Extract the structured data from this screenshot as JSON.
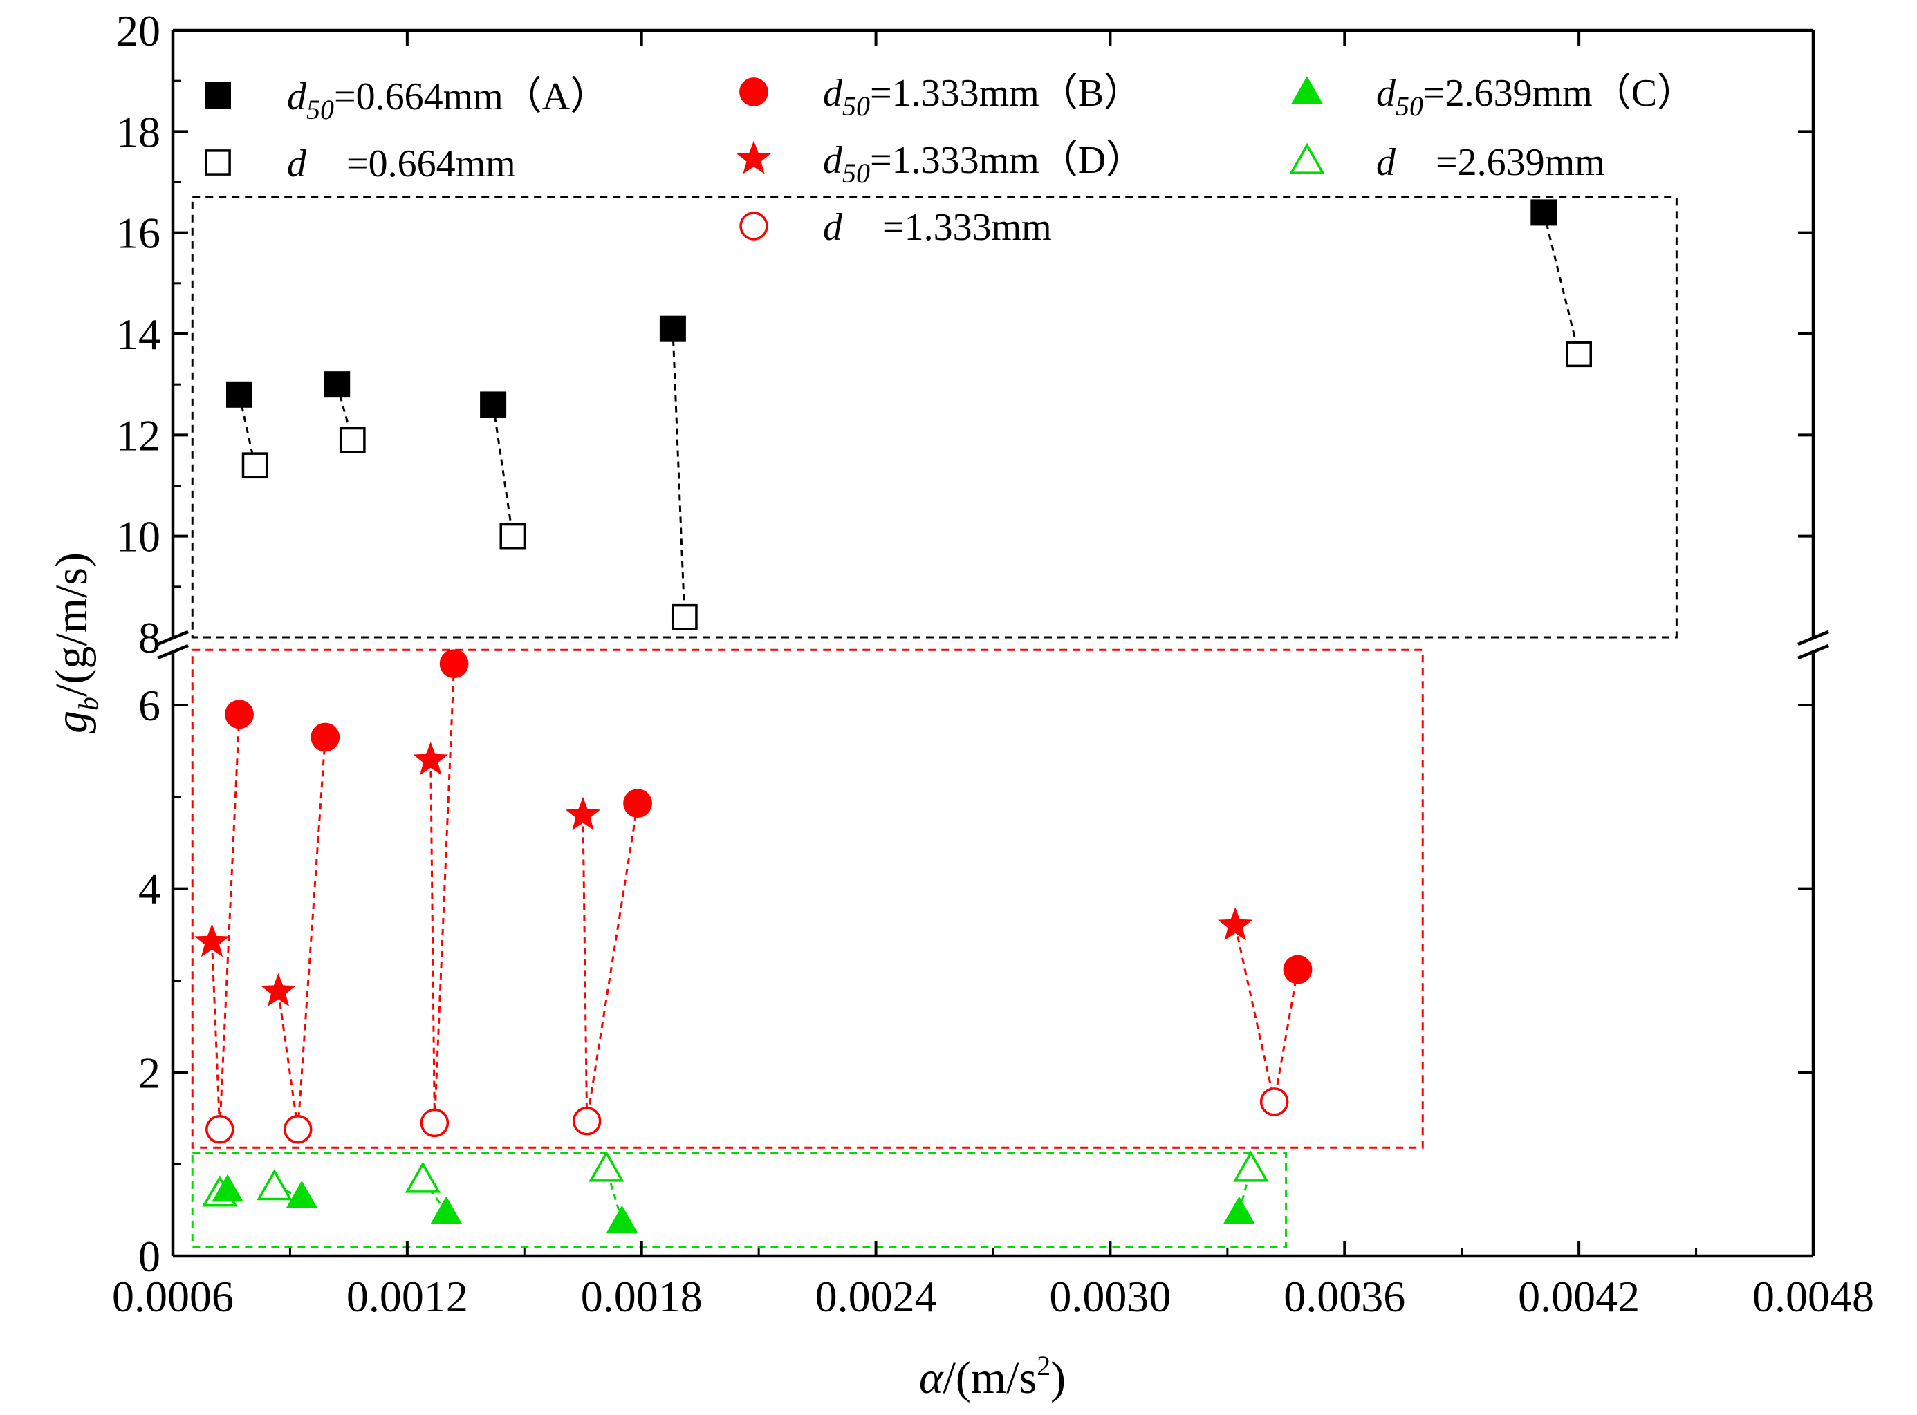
{
  "chart_data": {
    "type": "scatter",
    "title": "",
    "xlabel": {
      "symbol": "α",
      "rest": "/(m/s",
      "sup": "2",
      "close": ")"
    },
    "ylabel": {
      "symbol": "g",
      "sub": "b",
      "rest": "/(g/m/s)"
    },
    "xlim": [
      0.0006,
      0.0048
    ],
    "ylim_lower": [
      0,
      6.5
    ],
    "ylim_upper": [
      8,
      20
    ],
    "axis_break": true,
    "x_ticks": [
      "0.0006",
      "0.0012",
      "0.0018",
      "0.0024",
      "0.0030",
      "0.0036",
      "0.0042",
      "0.0048"
    ],
    "y_ticks_lower": [
      "0",
      "2",
      "4",
      "6"
    ],
    "y_ticks_upper": [
      "8",
      "10",
      "12",
      "14",
      "16",
      "18",
      "20"
    ],
    "legend": [
      {
        "key": "A",
        "symbol": "square-filled",
        "color": "#000000",
        "var": "d",
        "sub": "50",
        "text": "=0.664mm（A）"
      },
      {
        "key": "Aopen",
        "symbol": "square-open",
        "color": "#000000",
        "var": "d",
        "sub": "",
        "text": "=0.664mm"
      },
      {
        "key": "B",
        "symbol": "circle-filled",
        "color": "#ff0000",
        "var": "d",
        "sub": "50",
        "text": "=1.333mm（B）"
      },
      {
        "key": "D",
        "symbol": "star-filled",
        "color": "#ff0000",
        "var": "d",
        "sub": "50",
        "text": "=1.333mm（D）"
      },
      {
        "key": "Bopen",
        "symbol": "circle-open",
        "color": "#ff0000",
        "var": "d",
        "sub": "",
        "text": "=1.333mm"
      },
      {
        "key": "C",
        "symbol": "triangle-filled",
        "color": "#00dd00",
        "var": "d",
        "sub": "50",
        "text": "=2.639mm（C）"
      },
      {
        "key": "Copen",
        "symbol": "triangle-open",
        "color": "#00dd00",
        "var": "d",
        "sub": "",
        "text": "=2.639mm"
      }
    ],
    "series": [
      {
        "name": "d50=0.664mm (A)",
        "symbol": "square-filled",
        "color": "#000000",
        "x": [
          0.00077,
          0.00102,
          0.00142,
          0.00188,
          0.00411
        ],
        "y": [
          12.8,
          13.0,
          12.6,
          14.1,
          16.4
        ]
      },
      {
        "name": "d=0.664mm",
        "symbol": "square-open",
        "color": "#000000",
        "x": [
          0.00081,
          0.00106,
          0.00147,
          0.00191,
          0.0042
        ],
        "y": [
          11.4,
          11.9,
          10.0,
          8.4,
          13.6
        ]
      },
      {
        "name": "d50=1.333mm (B)",
        "symbol": "circle-filled",
        "color": "#ff0000",
        "x": [
          0.00077,
          0.00099,
          0.00132,
          0.00179,
          0.00348
        ],
        "y": [
          5.9,
          5.65,
          6.45,
          4.93,
          3.12
        ]
      },
      {
        "name": "d50=1.333mm (D)",
        "symbol": "star-filled",
        "color": "#ff0000",
        "x": [
          0.0007,
          0.00087,
          0.00126,
          0.00165,
          0.00332
        ],
        "y": [
          3.42,
          2.88,
          5.4,
          4.8,
          3.6
        ]
      },
      {
        "name": "d=1.333mm",
        "symbol": "circle-open",
        "color": "#ff0000",
        "x": [
          0.00072,
          0.00092,
          0.00127,
          0.00166,
          0.00342
        ],
        "y": [
          1.38,
          1.38,
          1.45,
          1.47,
          1.68
        ]
      },
      {
        "name": "d50=2.639mm (C)",
        "symbol": "triangle-filled",
        "color": "#00dd00",
        "x": [
          0.00074,
          0.00093,
          0.0013,
          0.00175,
          0.00333
        ],
        "y": [
          0.72,
          0.65,
          0.48,
          0.38,
          0.48
        ]
      },
      {
        "name": "d=2.639mm",
        "symbol": "triangle-open",
        "color": "#00dd00",
        "x": [
          0.00072,
          0.00086,
          0.00124,
          0.00171,
          0.00336
        ],
        "y": [
          0.68,
          0.75,
          0.83,
          0.95,
          0.95
        ]
      }
    ],
    "pairs": [
      {
        "from": "d50=0.664mm (A)",
        "to": "d=0.664mm",
        "color": "#000000"
      },
      {
        "from": "d50=1.333mm (B)",
        "to": "d=1.333mm",
        "color": "#ff0000"
      },
      {
        "from": "d50=1.333mm (D)",
        "to": "d=1.333mm",
        "color": "#ff0000"
      },
      {
        "from": "d50=2.639mm (C)",
        "to": "d=2.639mm",
        "color": "#00dd00"
      }
    ],
    "group_boxes": [
      {
        "name": "black-group",
        "color": "#000000",
        "x": [
          0.00065,
          0.00445
        ],
        "y": [
          8.0,
          16.7
        ]
      },
      {
        "name": "red-group",
        "color": "#ff0000",
        "x": [
          0.00065,
          0.0038
        ],
        "y": [
          1.18,
          6.6
        ]
      },
      {
        "name": "green-group",
        "color": "#00dd00",
        "x": [
          0.00065,
          0.00345
        ],
        "y": [
          0.1,
          1.12
        ]
      }
    ]
  }
}
